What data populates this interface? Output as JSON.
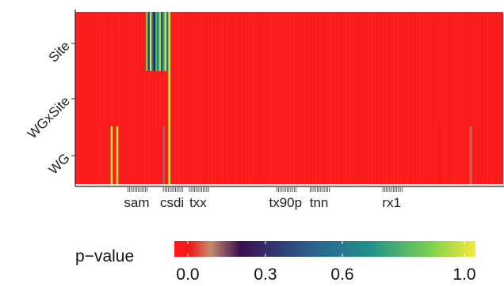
{
  "chart_data": {
    "type": "heatmap",
    "rows": [
      "Site",
      "WGxSite",
      "WG"
    ],
    "x_tick_labels": [
      "sam",
      "csdi",
      "txx",
      "tx90p",
      "tnn",
      "rx1"
    ],
    "n_columns": 230,
    "base_value": 0.0,
    "highlights": [
      {
        "row": "Site",
        "col_start": 38,
        "col_end": 49,
        "values": [
          0.85,
          0.35,
          0.95,
          0.55,
          0.25,
          0.75,
          0.6,
          0.9,
          0.4,
          0.7,
          0.95,
          0.5
        ]
      },
      {
        "row": "Site",
        "col_start": 50,
        "col_end": 50,
        "values": [
          0.95
        ]
      },
      {
        "row": "WGxSite",
        "col_start": 50,
        "col_end": 50,
        "values": [
          0.95
        ]
      },
      {
        "row": "WG",
        "col_start": 19,
        "col_end": 19,
        "values": [
          0.95
        ]
      },
      {
        "row": "WG",
        "col_start": 22,
        "col_end": 22,
        "values": [
          0.95
        ]
      },
      {
        "row": "WG",
        "col_start": 47,
        "col_end": 47,
        "values": [
          0.15
        ]
      },
      {
        "row": "WG",
        "col_start": 50,
        "col_end": 50,
        "values": [
          0.95
        ]
      },
      {
        "row": "WG",
        "col_start": 212,
        "col_end": 212,
        "values": [
          0.1
        ]
      },
      {
        "row": "WG",
        "col_start": 195,
        "col_end": 195,
        "values": [
          0.02
        ]
      }
    ],
    "legend": {
      "title": "p−value",
      "ticks": [
        "0.0",
        "0.3",
        "0.6",
        "1.0"
      ],
      "tick_values": [
        0.0,
        0.3,
        0.6,
        1.0
      ],
      "colors": [
        "#ff1a1a",
        "#3b0f4f",
        "#2a788e",
        "#f7e93a"
      ]
    }
  }
}
